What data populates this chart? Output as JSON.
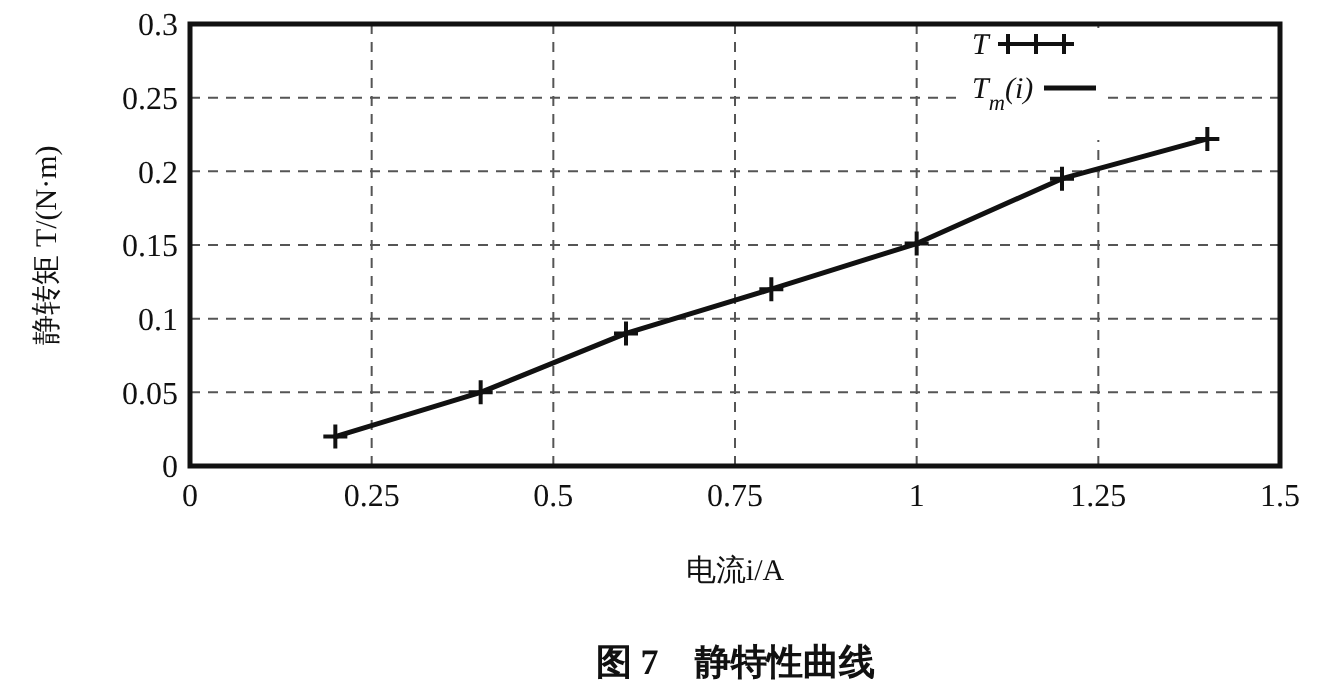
{
  "chart_data": {
    "type": "scatter",
    "title": "图 7　静特性曲线",
    "xlabel": "电流i/A",
    "ylabel": "静转矩 T/(N·m)",
    "xlim": [
      0,
      1.5
    ],
    "xticks": [
      0,
      0.25,
      0.5,
      0.75,
      1,
      1.25,
      1.5
    ],
    "ylim": [
      0,
      0.3
    ],
    "yticks": [
      0,
      0.05,
      0.1,
      0.15,
      0.2,
      0.25,
      0.3
    ],
    "grid": true,
    "legend": "top right",
    "series": [
      {
        "name": "T",
        "marker": "cross",
        "color": "#111111",
        "x": [
          0.2,
          0.4,
          0.6,
          0.8,
          1.0,
          1.2,
          1.4
        ],
        "values": [
          0.02,
          0.05,
          0.09,
          0.12,
          0.151,
          0.195,
          0.222
        ]
      },
      {
        "name": "T$_{m}$(i)",
        "type": "line",
        "marker": "none",
        "line_style": "solid",
        "color": "#111111",
        "x": [
          0.2,
          0.4,
          0.6,
          0.8,
          1.0,
          1.2,
          1.4
        ],
        "values": [
          0.02,
          0.05,
          0.09,
          0.12,
          0.151,
          0.195,
          0.222
        ]
      }
    ]
  }
}
